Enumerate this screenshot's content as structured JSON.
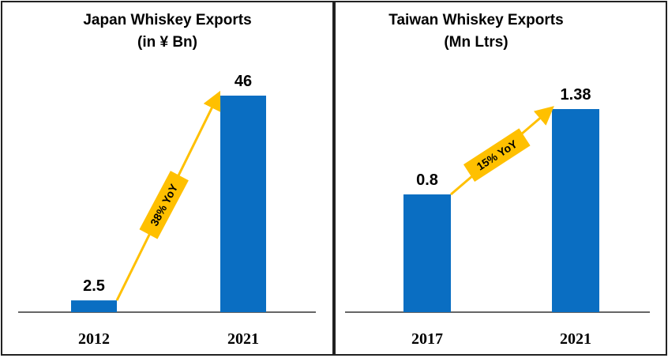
{
  "colors": {
    "bar": "#0a6ec2",
    "arrow": "#ffc000",
    "border": "#222222"
  },
  "chart_data": [
    {
      "type": "bar",
      "title": "Japan Whiskey Exports",
      "subtitle": "(in ¥ Bn)",
      "categories": [
        "2012",
        "2021"
      ],
      "values": [
        2.5,
        46
      ],
      "value_labels": [
        "2.5",
        "46"
      ],
      "growth_label": "38% YoY",
      "grid": false
    },
    {
      "type": "bar",
      "title": "Taiwan Whiskey Exports",
      "subtitle": "(Mn Ltrs)",
      "categories": [
        "2017",
        "2021"
      ],
      "values": [
        0.8,
        1.38
      ],
      "value_labels": [
        "0.8",
        "1.38"
      ],
      "growth_label": "15% YoY",
      "grid": false
    }
  ]
}
